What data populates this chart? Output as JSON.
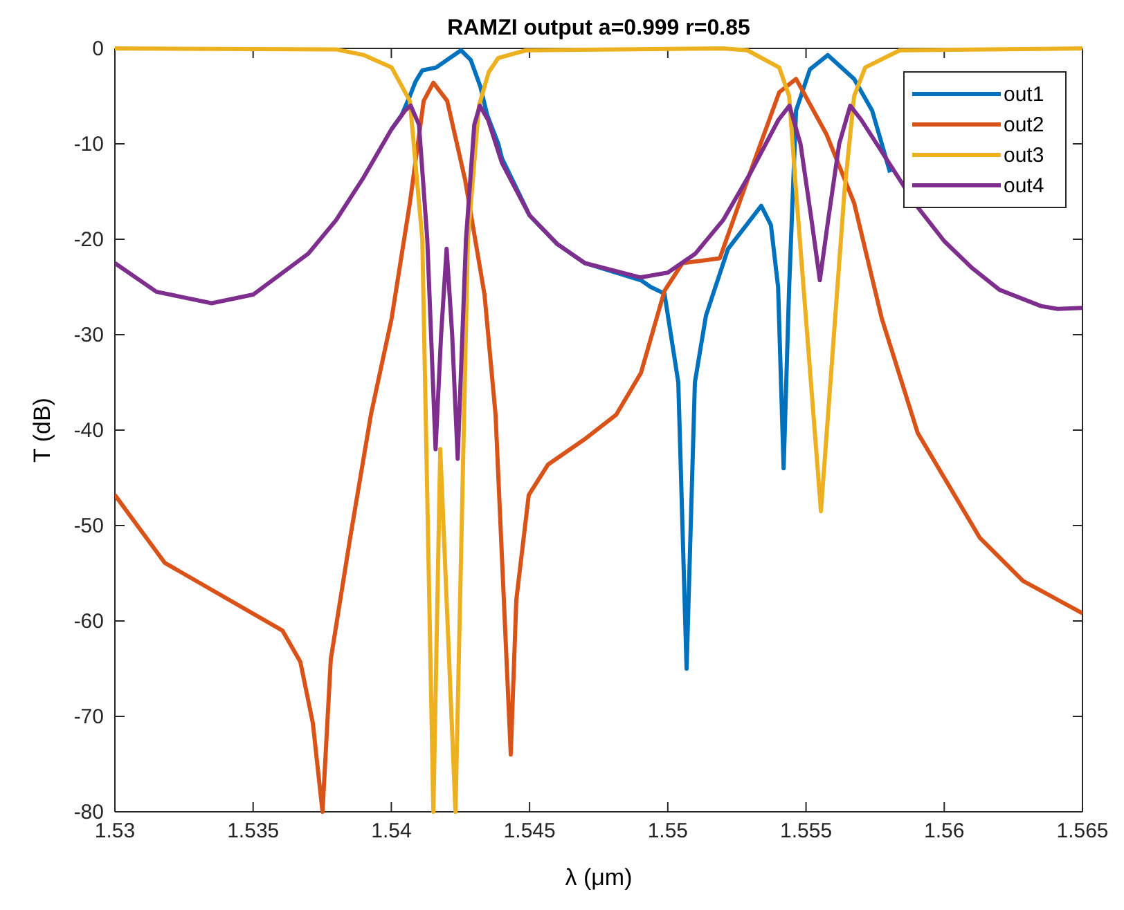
{
  "chart_data": {
    "type": "line",
    "title": "RAMZI output a=0.999 r=0.85",
    "xlabel": "λ (μm)",
    "ylabel": "T (dB)",
    "xlim": [
      1.53,
      1.565
    ],
    "xticks": [
      1.53,
      1.535,
      1.54,
      1.545,
      1.55,
      1.555,
      1.56,
      1.565
    ],
    "ylim": [
      -80,
      0
    ],
    "yticks": [
      -80,
      -70,
      -60,
      -50,
      -40,
      -30,
      -20,
      -10,
      0
    ],
    "grid": false,
    "legend": "top right",
    "line_style": "solid",
    "marker": "none",
    "series": [
      {
        "name": "out1",
        "color": "#0072bd",
        "x": [
          1.54,
          1.54037,
          1.54067,
          1.54087,
          1.54112,
          1.54162,
          1.54212,
          1.54252,
          1.54287,
          1.54322,
          1.54347,
          1.54387,
          1.544,
          1.545,
          1.546,
          1.547,
          1.54903,
          1.54938,
          1.54988,
          1.55038,
          1.55068,
          1.55098,
          1.55138,
          1.55218,
          1.55338,
          1.55373,
          1.55399,
          1.55419,
          1.55439,
          1.55464,
          1.55514,
          1.55579,
          1.55674,
          1.55739,
          1.55804
        ],
        "values": [
          -8.5,
          -7,
          -5,
          -3.5,
          -2.3,
          -2,
          -1,
          -0.2,
          -1.2,
          -4,
          -7,
          -10,
          -11.5,
          -17.5,
          -20.5,
          -22.5,
          -24.3,
          -25,
          -25.7,
          -35,
          -65,
          -35,
          -28,
          -21,
          -16.5,
          -18.5,
          -25,
          -44,
          -25,
          -6.5,
          -2.2,
          -0.7,
          -3.2,
          -6.5,
          -13
        ]
      },
      {
        "name": "out2",
        "color": "#d95319",
        "x": [
          1.53,
          1.5318,
          1.53606,
          1.53671,
          1.53716,
          1.53751,
          1.53781,
          1.53851,
          1.53926,
          1.54001,
          1.54067,
          1.54117,
          1.54152,
          1.54202,
          1.54267,
          1.54337,
          1.54377,
          1.54432,
          1.54452,
          1.54497,
          1.54567,
          1.54697,
          1.54813,
          1.54903,
          1.54988,
          1.55053,
          1.55188,
          1.55288,
          1.55403,
          1.55464,
          1.55574,
          1.55674,
          1.55774,
          1.55904,
          1.56129,
          1.56285,
          1.565
        ],
        "values": [
          -46.8,
          -53.9,
          -61,
          -64.3,
          -70.7,
          -80,
          -64,
          -51.3,
          -38.4,
          -28.3,
          -16.2,
          -5.5,
          -3.6,
          -5.5,
          -13.8,
          -25.8,
          -38.4,
          -74,
          -57.8,
          -46.8,
          -43.6,
          -41,
          -38.4,
          -34,
          -25.4,
          -22.5,
          -22,
          -13.8,
          -4.6,
          -3.2,
          -9,
          -16.2,
          -28.3,
          -40.3,
          -51.3,
          -55.8,
          -59.2
        ]
      },
      {
        "name": "out3",
        "color": "#edb120",
        "x": [
          1.53,
          1.538,
          1.53901,
          1.54001,
          1.54067,
          1.54112,
          1.54152,
          1.54177,
          1.54232,
          1.54277,
          1.54317,
          1.54352,
          1.54387,
          1.54487,
          1.552,
          1.55288,
          1.55403,
          1.55439,
          1.55464,
          1.55554,
          1.55639,
          1.55674,
          1.55714,
          1.55839,
          1.565
        ],
        "values": [
          0,
          -0.1,
          -0.7,
          -2,
          -5.5,
          -20,
          -80,
          -42,
          -80,
          -20,
          -6,
          -2.5,
          -1,
          -0.2,
          0,
          -0.2,
          -2,
          -5,
          -15,
          -48.5,
          -15,
          -5,
          -2,
          -0.2,
          0
        ]
      },
      {
        "name": "out4",
        "color": "#7e2f8e",
        "x": [
          1.53,
          1.5315,
          1.5335,
          1.535,
          1.537,
          1.538,
          1.539,
          1.54,
          1.5405,
          1.5407,
          1.541,
          1.5413,
          1.5416,
          1.5418,
          1.542,
          1.5422,
          1.5424,
          1.5427,
          1.543,
          1.5432,
          1.5435,
          1.544,
          1.545,
          1.546,
          1.547,
          1.549,
          1.55,
          1.551,
          1.552,
          1.553,
          1.554,
          1.5544,
          1.5548,
          1.5552,
          1.5555,
          1.5558,
          1.5562,
          1.5566,
          1.557,
          1.558,
          1.559,
          1.56,
          1.561,
          1.562,
          1.5635,
          1.5641,
          1.565
        ],
        "values": [
          -22.5,
          -25.5,
          -26.7,
          -25.8,
          -21.5,
          -18,
          -13.5,
          -8.5,
          -6.5,
          -6,
          -8,
          -20,
          -42,
          -30,
          -21,
          -30,
          -43,
          -20,
          -8,
          -6,
          -7.5,
          -12,
          -17.5,
          -20.5,
          -22.5,
          -24,
          -23.5,
          -21.5,
          -18,
          -13,
          -7.5,
          -6,
          -10,
          -18,
          -24.3,
          -18,
          -10,
          -6,
          -7.5,
          -12,
          -16.5,
          -20.2,
          -23,
          -25.3,
          -27,
          -27.3,
          -27.2
        ]
      }
    ]
  }
}
